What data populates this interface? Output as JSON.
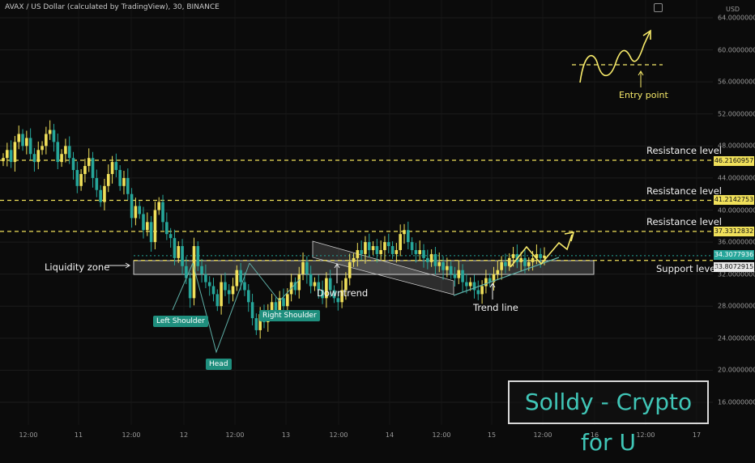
{
  "header": {
    "title": "AVAX / US Dollar (calculated by TradingView), 30, BINANCE"
  },
  "axis": {
    "currency": "USD",
    "y_ticks": [
      "64.0000000",
      "60.0000000",
      "56.0000000",
      "52.0000000",
      "48.0000000",
      "44.0000000",
      "40.0000000",
      "36.0000000",
      "32.0000000",
      "28.0000000",
      "24.0000000",
      "20.0000000",
      "16.0000000"
    ],
    "x_ticks": [
      "12:00",
      "11",
      "12:00",
      "12",
      "12:00",
      "13",
      "12:00",
      "14",
      "12:00",
      "15",
      "12:00",
      "16",
      "12:00",
      "17"
    ]
  },
  "price_labels": {
    "r1": "46.2160957",
    "r2": "41.2142753",
    "r3": "37.3312832",
    "current": "34.3077936",
    "support": "33.8072915"
  },
  "annotations": {
    "resistance_1": "Resistance level",
    "resistance_2": "Resistance level",
    "resistance_3": "Resistance level",
    "support": "Support level",
    "liquidity": "Liquidity zone",
    "downtrend": "Downtrend",
    "trendline": "Trend line",
    "entry": "Entry point",
    "left_shoulder": "Left Shoulder",
    "head": "Head",
    "right_shoulder": "Right Shoulder"
  },
  "brand": "Solldy - Crypto for U",
  "colors": {
    "up": "#f0e05a",
    "down": "#26a69a",
    "level": "#f0e05a",
    "background": "#0b0b0b"
  },
  "chart_data": {
    "type": "candlestick",
    "symbol": "AVAX / US Dollar",
    "interval": "30",
    "exchange": "BINANCE",
    "ylim": [
      14,
      66
    ],
    "levels": {
      "resistance": [
        46.2160957,
        41.2142753,
        37.3312832
      ],
      "support": 33.8072915,
      "current_price": 34.3077936
    },
    "path_close": [
      46.5,
      47.5,
      46.0,
      48.5,
      49.5,
      48.0,
      49.0,
      47.0,
      46.0,
      47.5,
      48.0,
      49.5,
      50.0,
      48.5,
      46.0,
      47.0,
      48.0,
      46.5,
      45.0,
      43.0,
      44.5,
      45.5,
      46.5,
      44.0,
      42.5,
      41.0,
      43.0,
      44.5,
      46.0,
      45.0,
      43.0,
      44.0,
      42.0,
      39.0,
      40.5,
      39.5,
      37.5,
      38.5,
      36.0,
      40.0,
      41.0,
      38.5,
      37.0,
      36.5,
      34.0,
      35.5,
      33.0,
      31.5,
      29.0,
      35.5,
      33.0,
      32.0,
      31.0,
      30.5,
      29.5,
      28.0,
      31.0,
      30.0,
      29.5,
      30.5,
      32.5,
      31.0,
      30.0,
      28.5,
      26.5,
      25.0,
      27.0,
      26.0,
      27.5,
      28.5,
      27.5,
      29.0,
      28.0,
      29.5,
      31.0,
      30.0,
      32.0,
      33.5,
      32.0,
      30.5,
      31.0,
      30.0,
      29.0,
      31.5,
      30.0,
      29.0,
      28.5,
      30.0,
      31.5,
      33.5,
      34.0,
      35.0,
      34.5,
      36.0,
      35.0,
      35.5,
      34.5,
      35.0,
      36.0,
      35.5,
      34.5,
      35.0,
      37.0,
      37.5,
      36.0,
      35.0,
      34.5,
      35.0,
      34.0,
      33.5,
      34.5,
      33.0,
      33.5,
      32.5,
      33.0,
      32.0,
      31.5,
      32.5,
      31.0,
      30.5,
      31.0,
      30.0,
      29.5,
      30.5,
      31.5,
      31.0,
      32.0,
      32.5,
      33.5,
      33.0,
      34.0,
      34.5,
      33.5,
      34.0,
      33.0,
      33.5,
      34.0,
      34.5,
      34.0,
      34.3
    ]
  }
}
